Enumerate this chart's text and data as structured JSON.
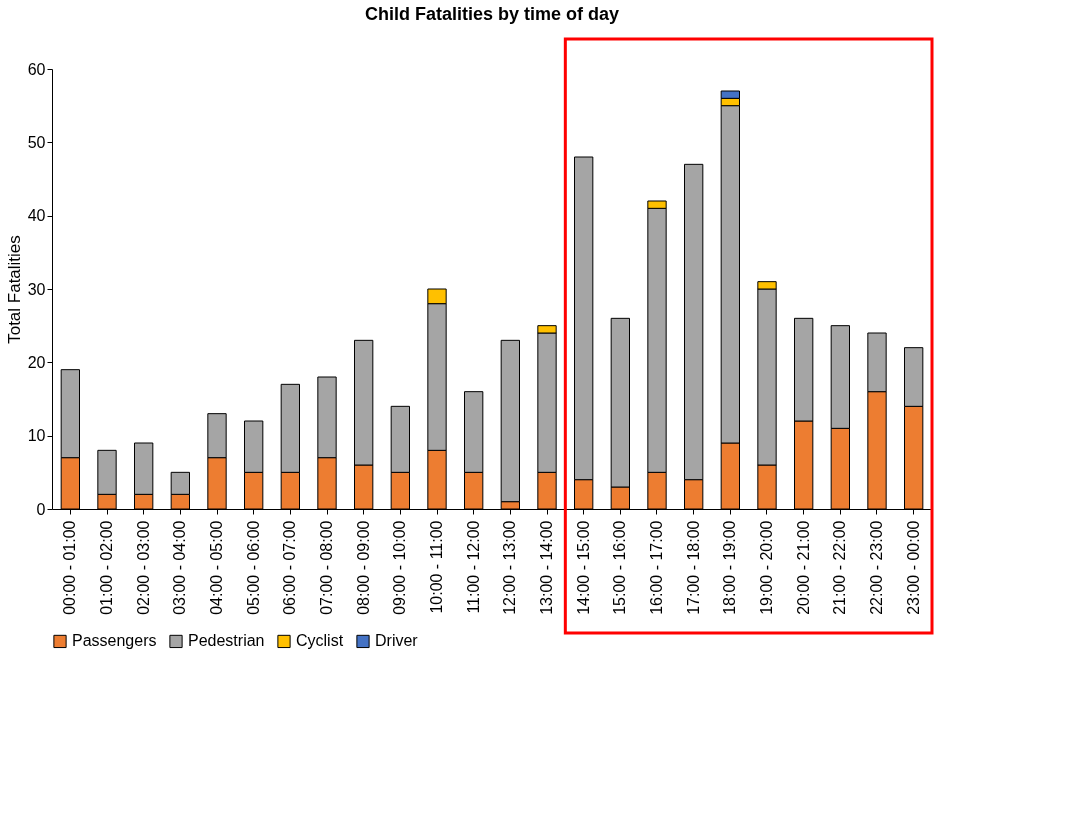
{
  "chart_data": {
    "type": "bar",
    "title": "Child Fatalities by time of day",
    "ylabel": "Total Fatalities",
    "stacked": true,
    "categories": [
      "00:00 - 01:00",
      "01:00 - 02:00",
      "02:00 - 03:00",
      "03:00 - 04:00",
      "04:00 - 05:00",
      "05:00 - 06:00",
      "06:00 - 07:00",
      "07:00 - 08:00",
      "08:00 - 09:00",
      "09:00 - 10:00",
      "10:00 - 11:00",
      "11:00 - 12:00",
      "12:00 - 13:00",
      "13:00 - 14:00",
      "14:00 - 15:00",
      "15:00 - 16:00",
      "16:00 - 17:00",
      "17:00 - 18:00",
      "18:00 - 19:00",
      "19:00 - 20:00",
      "20:00 - 21:00",
      "21:00 - 22:00",
      "22:00 - 23:00",
      "23:00 - 00:00"
    ],
    "series": [
      {
        "name": "Passengers",
        "color": "#ed7d31",
        "values": [
          7,
          2,
          2,
          2,
          7,
          5,
          5,
          7,
          6,
          5,
          8,
          5,
          1,
          5,
          4,
          3,
          5,
          4,
          9,
          6,
          12,
          11,
          16,
          14
        ]
      },
      {
        "name": "Pedestrian",
        "color": "#a5a5a5",
        "values": [
          12,
          6,
          7,
          3,
          6,
          7,
          12,
          11,
          17,
          9,
          20,
          11,
          22,
          19,
          44,
          23,
          36,
          43,
          46,
          24,
          14,
          14,
          8,
          8
        ]
      },
      {
        "name": "Cyclist",
        "color": "#ffc000",
        "values": [
          null,
          null,
          null,
          null,
          null,
          null,
          null,
          null,
          null,
          null,
          2,
          null,
          null,
          1,
          null,
          null,
          1,
          null,
          1,
          1,
          null,
          null,
          null,
          null
        ]
      },
      {
        "name": "Driver",
        "color": "#4472c4",
        "values": [
          null,
          null,
          null,
          null,
          null,
          null,
          null,
          null,
          null,
          null,
          null,
          null,
          null,
          null,
          null,
          null,
          null,
          null,
          1,
          null,
          null,
          null,
          null,
          null
        ]
      }
    ],
    "ylim": [
      0,
      60
    ],
    "yticks": [
      0,
      10,
      20,
      30,
      40,
      50,
      60
    ],
    "grid": false,
    "legend": "bottom"
  }
}
